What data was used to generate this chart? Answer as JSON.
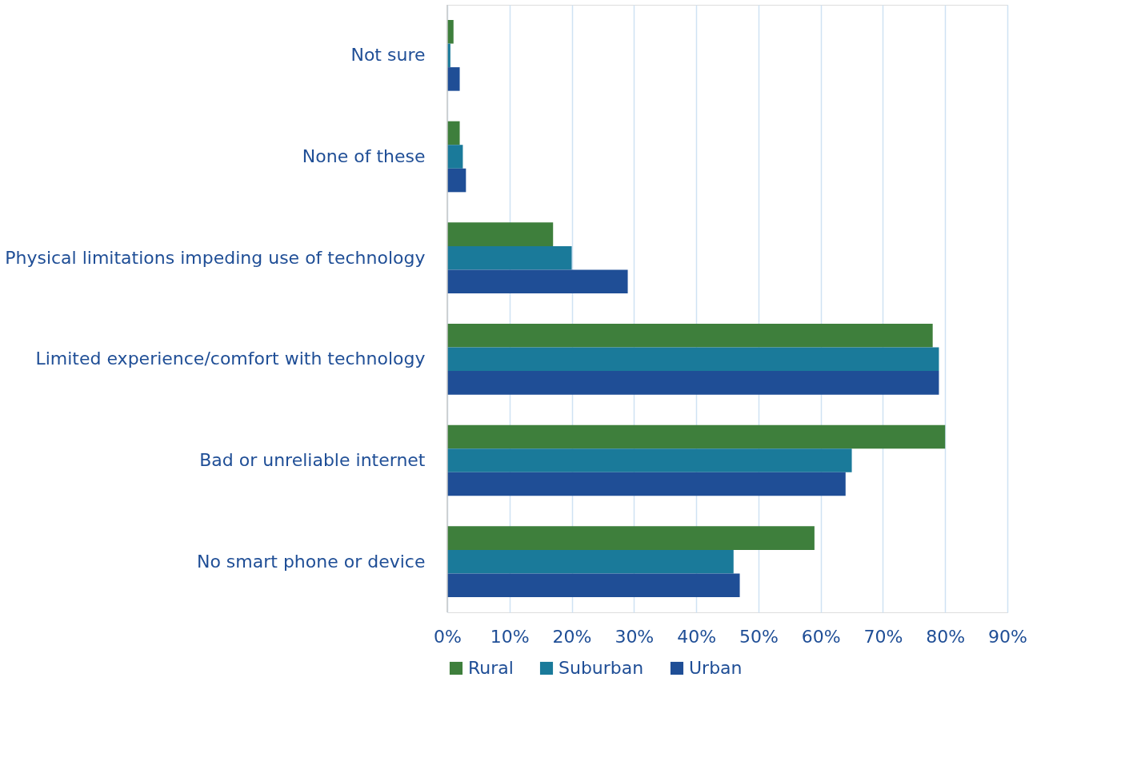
{
  "chart_data": {
    "type": "bar",
    "orientation": "horizontal",
    "categories": [
      "Not sure",
      "None of these",
      "Physical limitations impeding use of technology",
      "Limited experience/comfort with technology",
      "Bad or unreliable internet",
      "No smart phone or device"
    ],
    "series": [
      {
        "name": "Rural",
        "color": "#3e7f3c",
        "values": [
          1,
          2,
          17,
          78,
          80,
          59
        ]
      },
      {
        "name": "Suburban",
        "color": "#1a7a9a",
        "values": [
          0.5,
          2.5,
          20,
          79,
          65,
          46
        ]
      },
      {
        "name": "Urban",
        "color": "#1f4e96",
        "values": [
          2,
          3,
          29,
          79,
          64,
          47
        ]
      }
    ],
    "xlim": [
      0,
      90
    ],
    "xticks": [
      {
        "value": 0,
        "label": "0%"
      },
      {
        "value": 10,
        "label": "10%"
      },
      {
        "value": 20,
        "label": "20%"
      },
      {
        "value": 30,
        "label": "30%"
      },
      {
        "value": 40,
        "label": "40%"
      },
      {
        "value": 50,
        "label": "50%"
      },
      {
        "value": 60,
        "label": "60%"
      },
      {
        "value": 70,
        "label": "70%"
      },
      {
        "value": 80,
        "label": "80%"
      },
      {
        "value": 90,
        "label": "90%"
      }
    ],
    "grid": "x",
    "legend": "bottom"
  }
}
